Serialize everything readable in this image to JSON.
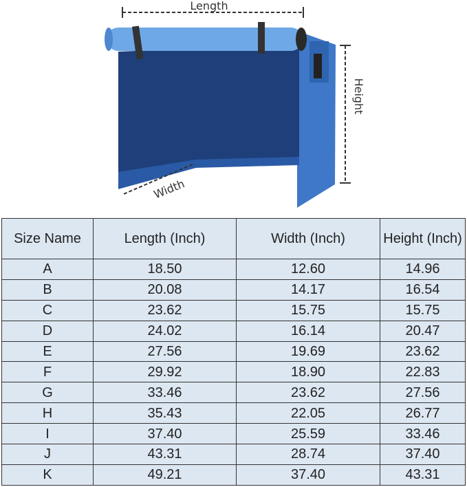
{
  "diagram": {
    "length_label": "Length",
    "width_label": "Width",
    "height_label": "Height",
    "colors": {
      "front_panel": "#1f3f7a",
      "side_panel": "#3f78c8",
      "roll": "#6fa8e6",
      "strap": "#333333"
    }
  },
  "table": {
    "headers": [
      "Size Name",
      "Length (Inch)",
      "Width (Inch)",
      "Height (Inch)"
    ],
    "rows": [
      [
        "A",
        "18.50",
        "12.60",
        "14.96"
      ],
      [
        "B",
        "20.08",
        "14.17",
        "16.54"
      ],
      [
        "C",
        "23.62",
        "15.75",
        "15.75"
      ],
      [
        "D",
        "24.02",
        "16.14",
        "20.47"
      ],
      [
        "E",
        "27.56",
        "19.69",
        "23.62"
      ],
      [
        "F",
        "29.92",
        "18.90",
        "22.83"
      ],
      [
        "G",
        "33.46",
        "23.62",
        "27.56"
      ],
      [
        "H",
        "35.43",
        "22.05",
        "26.77"
      ],
      [
        "I",
        "37.40",
        "25.59",
        "33.46"
      ],
      [
        "J",
        "43.31",
        "28.74",
        "37.40"
      ],
      [
        "K",
        "49.21",
        "37.40",
        "43.31"
      ]
    ]
  }
}
